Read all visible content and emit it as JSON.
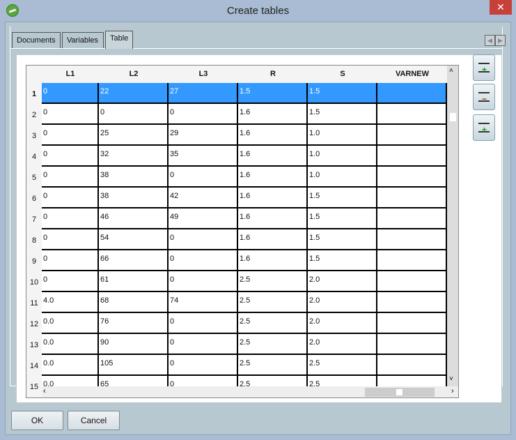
{
  "window": {
    "title": "Create tables",
    "close_label": "✕"
  },
  "tabs": [
    {
      "label": "Documents"
    },
    {
      "label": "Variables"
    },
    {
      "label": "Table",
      "active": true
    }
  ],
  "table": {
    "columns": [
      "L1",
      "L2",
      "L3",
      "R",
      "S",
      "VARNEW"
    ],
    "selected_row": 1,
    "rows": [
      {
        "n": "1",
        "cells": [
          "0",
          "22",
          "27",
          "1.5",
          "1.5",
          ""
        ]
      },
      {
        "n": "2",
        "cells": [
          "0",
          "0",
          "0",
          "1.6",
          "1.5",
          ""
        ]
      },
      {
        "n": "3",
        "cells": [
          "0",
          "25",
          "29",
          "1.6",
          "1.0",
          ""
        ]
      },
      {
        "n": "4",
        "cells": [
          "0",
          "32",
          "35",
          "1.6",
          "1.0",
          ""
        ]
      },
      {
        "n": "5",
        "cells": [
          "0",
          "38",
          "0",
          "1.6",
          "1.0",
          ""
        ]
      },
      {
        "n": "6",
        "cells": [
          "0",
          "38",
          "42",
          "1.6",
          "1.5",
          ""
        ]
      },
      {
        "n": "7",
        "cells": [
          "0",
          "46",
          "49",
          "1.6",
          "1.5",
          ""
        ]
      },
      {
        "n": "8",
        "cells": [
          "0",
          "54",
          "0",
          "1.6",
          "1.5",
          ""
        ]
      },
      {
        "n": "9",
        "cells": [
          "0",
          "66",
          "0",
          "1.6",
          "1.5",
          ""
        ]
      },
      {
        "n": "10",
        "cells": [
          "0",
          "61",
          "0",
          "2.5",
          "2.0",
          ""
        ]
      },
      {
        "n": "11",
        "cells": [
          "4.0",
          "68",
          "74",
          "2.5",
          "2.0",
          ""
        ]
      },
      {
        "n": "12",
        "cells": [
          "0.0",
          "76",
          "0",
          "2.5",
          "2.0",
          ""
        ]
      },
      {
        "n": "13",
        "cells": [
          "0.0",
          "90",
          "0",
          "2.5",
          "2.0",
          ""
        ]
      },
      {
        "n": "14",
        "cells": [
          "0.0",
          "105",
          "0",
          "2.5",
          "2.5",
          ""
        ]
      },
      {
        "n": "15",
        "cells": [
          "0.0",
          "65",
          "0",
          "2.5",
          "2.5",
          ""
        ]
      }
    ]
  },
  "side_buttons": [
    {
      "icon": "add-row-icon"
    },
    {
      "icon": "delete-row-icon"
    },
    {
      "icon": "insert-row-icon"
    }
  ],
  "buttons": {
    "ok": "OK",
    "cancel": "Cancel"
  },
  "colors": {
    "selection": "#3399ff",
    "close": "#c7403a"
  }
}
